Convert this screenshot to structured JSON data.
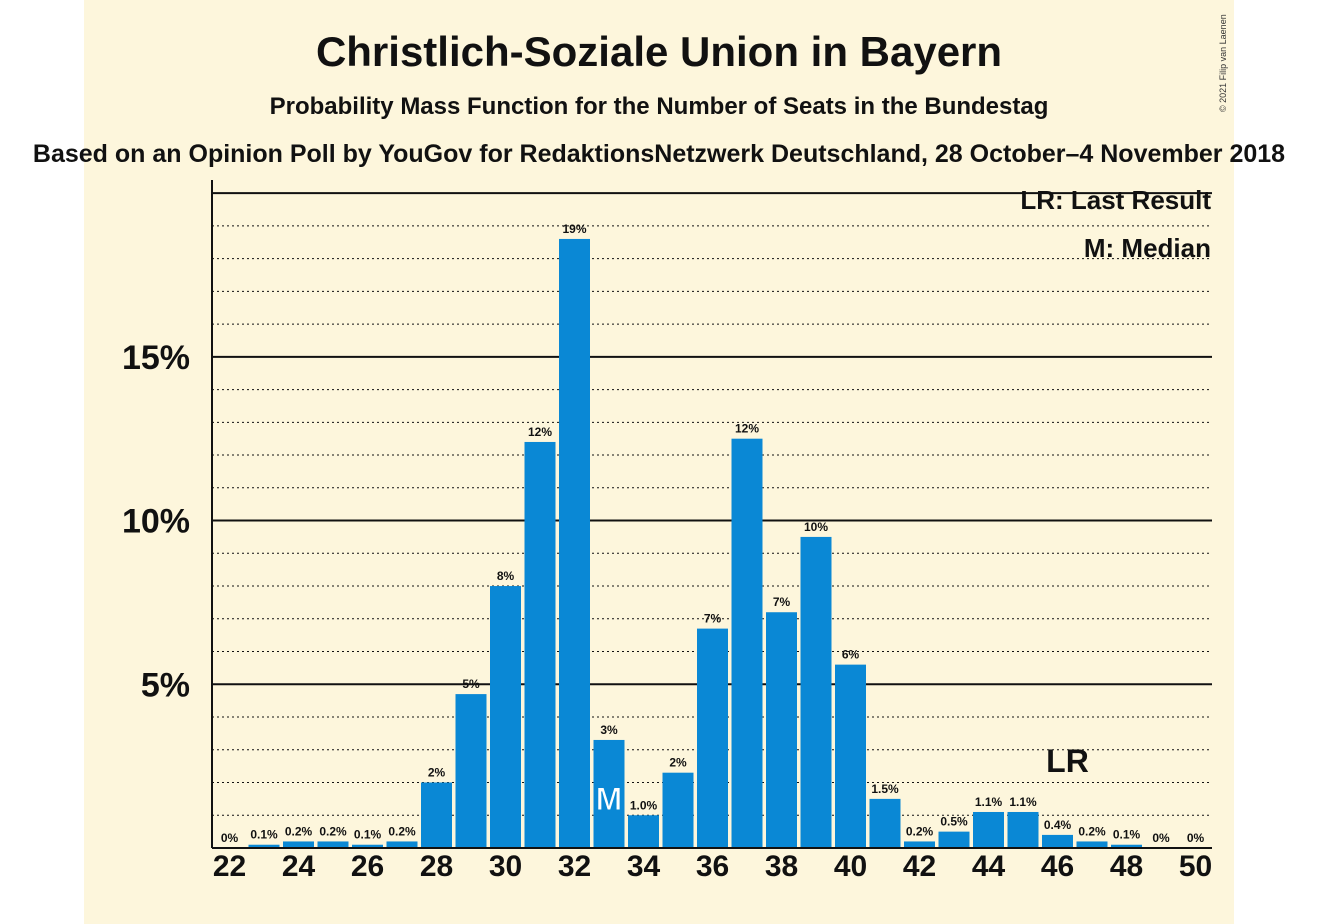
{
  "chart_data": {
    "type": "bar",
    "title": "Christlich-Soziale Union in Bayern",
    "subtitle": "Probability Mass Function for the Number of Seats in the Bundestag",
    "source": "Based on an Opinion Poll by YouGov for RedaktionsNetzwerk Deutschland, 28 October–4 November 2018",
    "copyright": "© 2021 Filip van Laenen",
    "legend": [
      "LR: Last Result",
      "M: Median"
    ],
    "legend_position": "top-right",
    "x": [
      22,
      23,
      24,
      25,
      26,
      27,
      28,
      29,
      30,
      31,
      32,
      33,
      34,
      35,
      36,
      37,
      38,
      39,
      40,
      41,
      42,
      43,
      44,
      45,
      46,
      47,
      48,
      49,
      50
    ],
    "values": [
      0,
      0.1,
      0.2,
      0.2,
      0.1,
      0.2,
      2.0,
      4.7,
      8.0,
      12.4,
      18.6,
      3.3,
      1.0,
      2.3,
      6.7,
      12.5,
      7.2,
      9.5,
      5.6,
      1.5,
      0.2,
      0.5,
      1.1,
      1.1,
      0.4,
      0.2,
      0.1,
      0,
      0
    ],
    "data_labels": [
      "0%",
      "0.1%",
      "0.2%",
      "0.2%",
      "0.1%",
      "0.2%",
      "2%",
      "5%",
      "8%",
      "12%",
      "19%",
      "3%",
      "1.0%",
      "2%",
      "7%",
      "12%",
      "7%",
      "10%",
      "6%",
      "1.5%",
      "0.2%",
      "0.5%",
      "1.1%",
      "1.1%",
      "0.4%",
      "0.2%",
      "0.1%",
      "0%",
      "0%"
    ],
    "xticks": [
      22,
      24,
      26,
      28,
      30,
      32,
      34,
      36,
      38,
      40,
      42,
      44,
      46,
      48,
      50
    ],
    "yticks": [
      5,
      10,
      15
    ],
    "ytick_labels": [
      "5%",
      "10%",
      "15%"
    ],
    "ylim": [
      0,
      20.4
    ],
    "median_seat": 33,
    "median_marker": "M",
    "last_result_seat": 46,
    "last_result_marker": "LR",
    "bar_color": "#0a88d5",
    "background_color": "#fdf6dc"
  }
}
